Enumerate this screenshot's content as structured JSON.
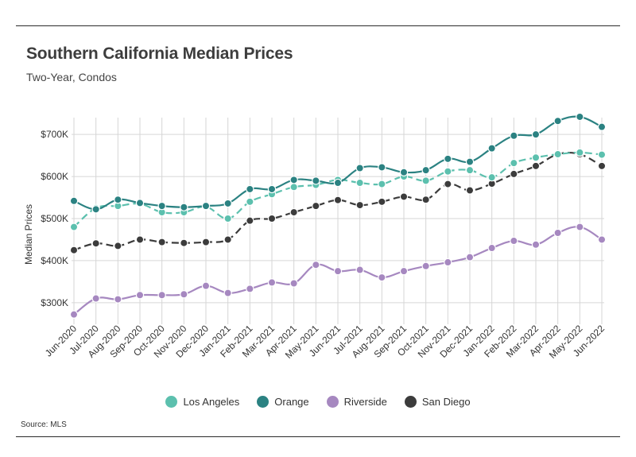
{
  "title": "Southern California Median Prices",
  "subtitle": "Two-Year, Condos",
  "source": "Source:  MLS",
  "chart_data": {
    "type": "line",
    "title": "Southern California Median Prices",
    "subtitle": "Two-Year, Condos",
    "xlabel": "",
    "ylabel": "Median Prices",
    "ylim": [
      260000,
      740000
    ],
    "yticks": [
      300000,
      400000,
      500000,
      600000,
      700000
    ],
    "ytick_labels": [
      "$300K",
      "$400K",
      "$500K",
      "$600K",
      "$700K"
    ],
    "grid": true,
    "legend_position": "bottom",
    "categories": [
      "Jun-2020",
      "Jul-2020",
      "Aug-2020",
      "Sep-2020",
      "Oct-2020",
      "Nov-2020",
      "Dec-2020",
      "Jan-2021",
      "Feb-2021",
      "Mar-2021",
      "Apr-2021",
      "May-2021",
      "Jun-2021",
      "Jul-2021",
      "Aug-2021",
      "Sep-2021",
      "Oct-2021",
      "Nov-2021",
      "Dec-2021",
      "Jan-2022",
      "Feb-2022",
      "Mar-2022",
      "Apr-2022",
      "May-2022",
      "Jun-2022"
    ],
    "series": [
      {
        "name": "Los Angeles",
        "color": "#5cc0ae",
        "dashed": true,
        "values": [
          480000,
          525000,
          530000,
          535000,
          515000,
          515000,
          528000,
          500000,
          540000,
          558000,
          575000,
          580000,
          592000,
          585000,
          582000,
          600000,
          590000,
          612000,
          615000,
          598000,
          632000,
          645000,
          653000,
          657000,
          652000
        ]
      },
      {
        "name": "Orange",
        "color": "#2b8282",
        "dashed": false,
        "values": [
          542000,
          522000,
          545000,
          537000,
          530000,
          527000,
          530000,
          536000,
          570000,
          570000,
          592000,
          590000,
          585000,
          620000,
          622000,
          610000,
          615000,
          642000,
          635000,
          667000,
          697000,
          700000,
          732000,
          742000,
          718000
        ]
      },
      {
        "name": "Riverside",
        "color": "#a688c0",
        "dashed": false,
        "values": [
          272000,
          310000,
          308000,
          318000,
          318000,
          320000,
          340000,
          323000,
          333000,
          348000,
          346000,
          390000,
          375000,
          378000,
          360000,
          375000,
          387000,
          396000,
          408000,
          430000,
          447000,
          438000,
          466000,
          480000,
          450000
        ]
      },
      {
        "name": "San Diego",
        "color": "#3c3c3c",
        "dashed": true,
        "values": [
          425000,
          441000,
          435000,
          450000,
          444000,
          442000,
          444000,
          450000,
          495000,
          500000,
          515000,
          530000,
          544000,
          532000,
          540000,
          552000,
          545000,
          582000,
          567000,
          583000,
          606000,
          625000,
          653000,
          653000,
          625000
        ]
      }
    ]
  }
}
